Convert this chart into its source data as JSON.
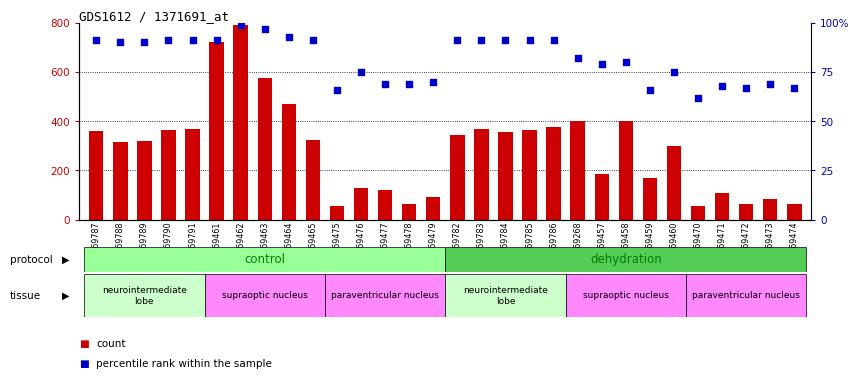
{
  "title": "GDS1612 / 1371691_at",
  "samples": [
    "GSM69787",
    "GSM69788",
    "GSM69789",
    "GSM69790",
    "GSM69791",
    "GSM69461",
    "GSM69462",
    "GSM69463",
    "GSM69464",
    "GSM69465",
    "GSM69475",
    "GSM69476",
    "GSM69477",
    "GSM69478",
    "GSM69479",
    "GSM69782",
    "GSM69783",
    "GSM69784",
    "GSM69785",
    "GSM69786",
    "GSM69268",
    "GSM69457",
    "GSM69458",
    "GSM69459",
    "GSM69460",
    "GSM69470",
    "GSM69471",
    "GSM69472",
    "GSM69473",
    "GSM69474"
  ],
  "counts": [
    360,
    315,
    320,
    365,
    370,
    720,
    790,
    575,
    470,
    325,
    55,
    130,
    120,
    65,
    90,
    345,
    370,
    355,
    365,
    375,
    400,
    185,
    400,
    170,
    300,
    55,
    110,
    65,
    85,
    65
  ],
  "percentiles": [
    91,
    90,
    90,
    91,
    91,
    91,
    99,
    97,
    93,
    91,
    66,
    75,
    69,
    69,
    70,
    91,
    91,
    91,
    91,
    91,
    82,
    79,
    80,
    66,
    75,
    62,
    68,
    67,
    69,
    67
  ],
  "bar_color": "#cc0000",
  "dot_color": "#0000cc",
  "ylim_left": [
    0,
    800
  ],
  "yticks_left": [
    0,
    200,
    400,
    600,
    800
  ],
  "yticks_right": [
    0,
    25,
    50,
    75,
    100
  ],
  "ytick_labels_right": [
    "0",
    "25",
    "50",
    "75",
    "100%"
  ],
  "grid_values": [
    200,
    400,
    600
  ],
  "protocol_control_color": "#99ff99",
  "protocol_dehydration_color": "#55cc55",
  "tissue_neuro_color": "#ccffcc",
  "tissue_supra_color": "#ff88ff",
  "tissue_para_color": "#ff88ff"
}
